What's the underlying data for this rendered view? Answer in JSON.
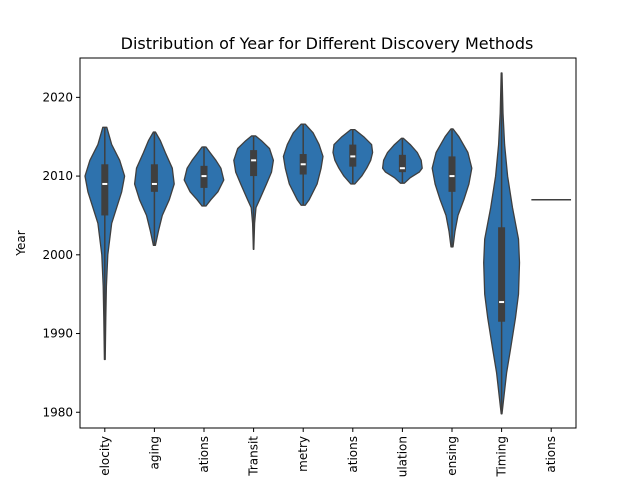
{
  "chart_data": {
    "type": "violin",
    "title": "Distribution of Year for Different Discovery Methods",
    "xlabel": "",
    "ylabel": "Year",
    "ylim": [
      1978,
      2025
    ],
    "yticks": [
      1980,
      1990,
      2000,
      2010,
      2020
    ],
    "grid": false,
    "legend": "none",
    "color": "#2e72ad",
    "categories": [
      "elocity",
      "aging",
      "ations",
      "Transit",
      "metry",
      "ations",
      "ulation",
      "ensing",
      "Timing",
      "ations"
    ],
    "series": [
      {
        "min": 1986.7,
        "max": 2016.2,
        "q1": 2005,
        "median": 2009,
        "q3": 2011.5,
        "profile": [
          [
            1986.7,
            0.02
          ],
          [
            1992,
            0.05
          ],
          [
            1996,
            0.08
          ],
          [
            2000,
            0.15
          ],
          [
            2004,
            0.35
          ],
          [
            2008,
            0.85
          ],
          [
            2010,
            1.0
          ],
          [
            2012,
            0.75
          ],
          [
            2014,
            0.35
          ],
          [
            2016.2,
            0.1
          ]
        ]
      },
      {
        "min": 2001.2,
        "max": 2015.6,
        "q1": 2008,
        "median": 2009,
        "q3": 2011.5,
        "profile": [
          [
            2001.2,
            0.05
          ],
          [
            2003,
            0.2
          ],
          [
            2005,
            0.4
          ],
          [
            2007,
            0.75
          ],
          [
            2009,
            1.0
          ],
          [
            2011,
            0.9
          ],
          [
            2013,
            0.55
          ],
          [
            2014.5,
            0.3
          ],
          [
            2015.6,
            0.05
          ]
        ]
      },
      {
        "min": 2006.2,
        "max": 2013.7,
        "q1": 2008.5,
        "median": 2010,
        "q3": 2011.3,
        "profile": [
          [
            2006.2,
            0.1
          ],
          [
            2007,
            0.35
          ],
          [
            2008,
            0.7
          ],
          [
            2009.5,
            1.0
          ],
          [
            2011,
            0.85
          ],
          [
            2012,
            0.6
          ],
          [
            2013,
            0.3
          ],
          [
            2013.7,
            0.1
          ]
        ]
      },
      {
        "min": 2000.7,
        "max": 2015.1,
        "q1": 2010,
        "median": 2012,
        "q3": 2013.3,
        "profile": [
          [
            2000.7,
            0.01
          ],
          [
            2004,
            0.05
          ],
          [
            2006,
            0.12
          ],
          [
            2007,
            0.3
          ],
          [
            2009,
            0.65
          ],
          [
            2010.5,
            0.9
          ],
          [
            2012,
            1.0
          ],
          [
            2013.5,
            0.8
          ],
          [
            2014.5,
            0.4
          ],
          [
            2015.1,
            0.1
          ]
        ]
      },
      {
        "min": 2006.3,
        "max": 2016.6,
        "q1": 2010.2,
        "median": 2011.5,
        "q3": 2012.8,
        "profile": [
          [
            2006.3,
            0.1
          ],
          [
            2007,
            0.3
          ],
          [
            2009,
            0.7
          ],
          [
            2011,
            0.9
          ],
          [
            2012.5,
            1.0
          ],
          [
            2014,
            0.8
          ],
          [
            2015.5,
            0.5
          ],
          [
            2016.6,
            0.1
          ]
        ]
      },
      {
        "min": 2009,
        "max": 2015.9,
        "q1": 2011.2,
        "median": 2012.5,
        "q3": 2014,
        "profile": [
          [
            2009,
            0.1
          ],
          [
            2010,
            0.45
          ],
          [
            2011,
            0.7
          ],
          [
            2012,
            0.9
          ],
          [
            2013,
            1.0
          ],
          [
            2014,
            0.95
          ],
          [
            2015,
            0.55
          ],
          [
            2015.9,
            0.1
          ]
        ]
      },
      {
        "min": 2009.1,
        "max": 2014.8,
        "q1": 2010.5,
        "median": 2011,
        "q3": 2012.7,
        "profile": [
          [
            2009.1,
            0.1
          ],
          [
            2009.8,
            0.4
          ],
          [
            2010.5,
            0.85
          ],
          [
            2011,
            1.0
          ],
          [
            2012,
            0.95
          ],
          [
            2013,
            0.75
          ],
          [
            2014,
            0.4
          ],
          [
            2014.8,
            0.05
          ]
        ]
      },
      {
        "min": 2001.0,
        "max": 2016.0,
        "q1": 2008,
        "median": 2010,
        "q3": 2012.5,
        "profile": [
          [
            2001.0,
            0.05
          ],
          [
            2003,
            0.15
          ],
          [
            2005,
            0.3
          ],
          [
            2007,
            0.6
          ],
          [
            2009,
            0.85
          ],
          [
            2011,
            1.0
          ],
          [
            2013,
            0.8
          ],
          [
            2015,
            0.35
          ],
          [
            2016.0,
            0.05
          ]
        ]
      },
      {
        "min": 1979.8,
        "max": 2023.1,
        "q1": 1991.5,
        "median": 1994,
        "q3": 2003.5,
        "profile": [
          [
            1979.8,
            0.02
          ],
          [
            1985,
            0.25
          ],
          [
            1988,
            0.45
          ],
          [
            1992,
            0.7
          ],
          [
            1995,
            0.85
          ],
          [
            1999,
            0.9
          ],
          [
            2002,
            0.85
          ],
          [
            2006,
            0.55
          ],
          [
            2010,
            0.3
          ],
          [
            2014,
            0.15
          ],
          [
            2018,
            0.07
          ],
          [
            2023.1,
            0.02
          ]
        ]
      },
      {
        "min": 2007,
        "max": 2007,
        "q1": 2007,
        "median": 2007,
        "q3": 2007,
        "profile": []
      }
    ]
  }
}
